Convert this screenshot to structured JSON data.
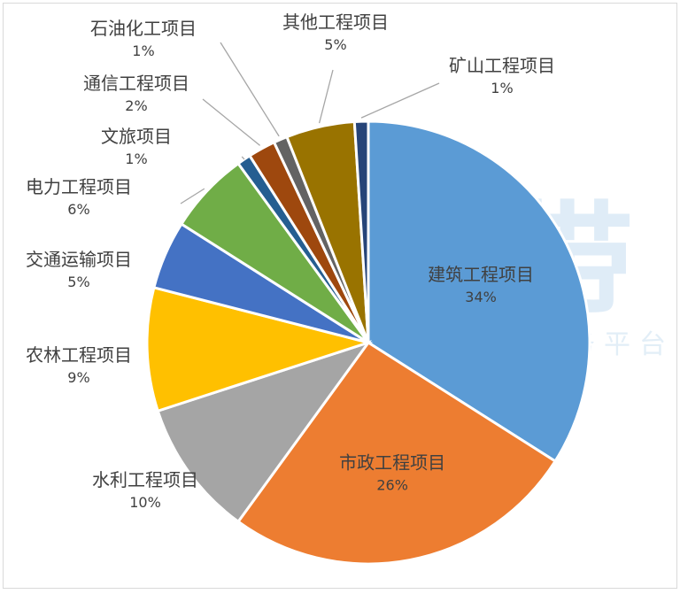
{
  "watermark": {
    "text": "工程资讯数字化服务平台",
    "logo_text": "川海带"
  },
  "chart_data": {
    "type": "pie",
    "title": "",
    "start_angle_deg": 90,
    "direction": "clockwise",
    "slices": [
      {
        "label": "建筑工程项目",
        "value": 34,
        "pct_label": "34%",
        "color": "#5b9bd5",
        "label_pos": "inside"
      },
      {
        "label": "市政工程项目",
        "value": 26,
        "pct_label": "26%",
        "color": "#ed7d31",
        "label_pos": "inside"
      },
      {
        "label": "水利工程项目",
        "value": 10,
        "pct_label": "10%",
        "color": "#a5a5a5",
        "label_pos": "outside"
      },
      {
        "label": "农林工程项目",
        "value": 9,
        "pct_label": "9%",
        "color": "#ffc000",
        "label_pos": "outside"
      },
      {
        "label": "交通运输项目",
        "value": 5,
        "pct_label": "5%",
        "color": "#4472c4",
        "label_pos": "outside"
      },
      {
        "label": "电力工程项目",
        "value": 6,
        "pct_label": "6%",
        "color": "#70ad47",
        "label_pos": "outside"
      },
      {
        "label": "文旅项目",
        "value": 1,
        "pct_label": "1%",
        "color": "#255e91",
        "label_pos": "outside"
      },
      {
        "label": "通信工程项目",
        "value": 2,
        "pct_label": "2%",
        "color": "#9e480e",
        "label_pos": "outside"
      },
      {
        "label": "石油化工项目",
        "value": 1,
        "pct_label": "1%",
        "color": "#636363",
        "label_pos": "outside"
      },
      {
        "label": "其他工程项目",
        "value": 5,
        "pct_label": "5%",
        "color": "#997300",
        "label_pos": "outside"
      },
      {
        "label": "矿山工程项目",
        "value": 1,
        "pct_label": "1%",
        "color": "#264478",
        "label_pos": "outside"
      }
    ]
  }
}
